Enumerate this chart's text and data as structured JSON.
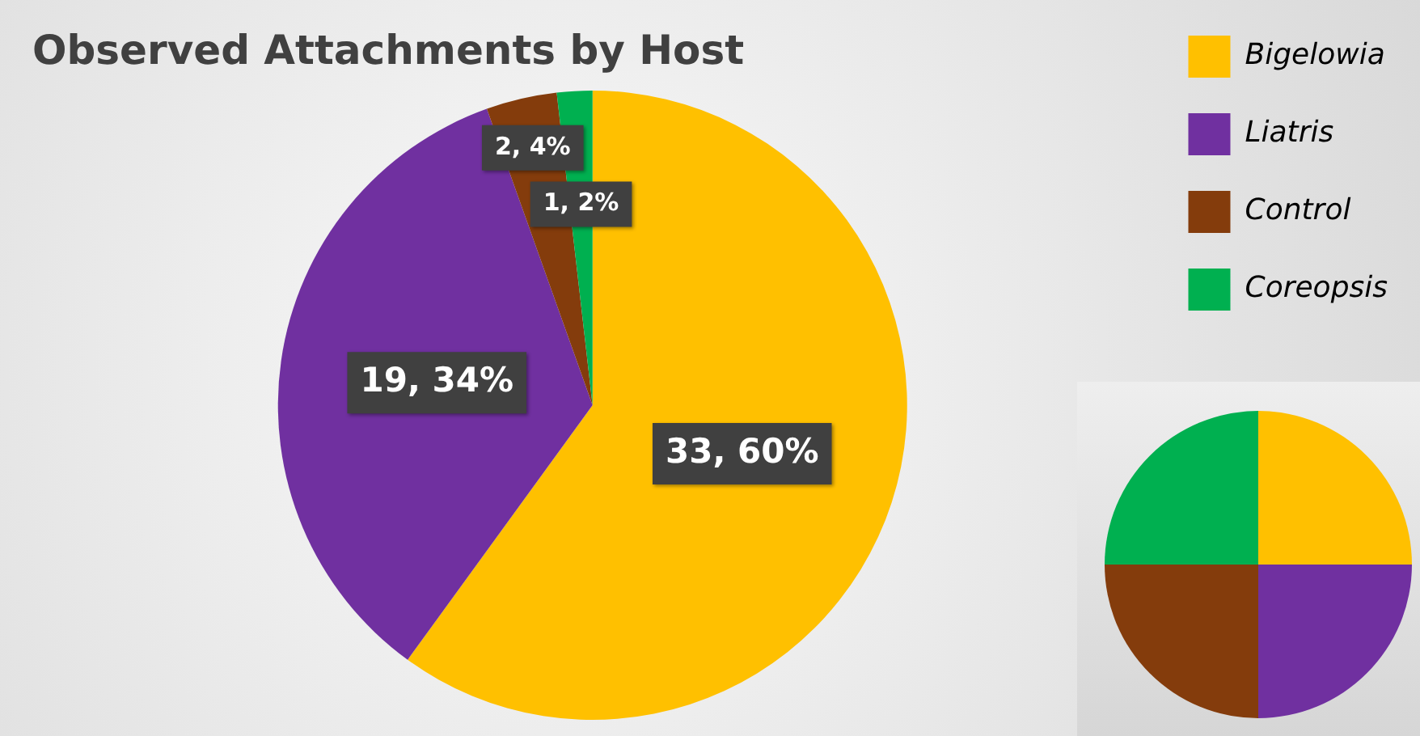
{
  "chart_data": {
    "type": "pie",
    "title": "Observed Attachments by Host",
    "categories": [
      "Bigelowia",
      "Liatris",
      "Control",
      "Coreopsis"
    ],
    "values": [
      33,
      19,
      2,
      1
    ],
    "value_labels": [
      "33, 60%",
      "19, 34%",
      "2, 4%",
      "1, 2%"
    ],
    "colors": [
      "#ffc000",
      "#7030a0",
      "#843c0c",
      "#00b050"
    ],
    "legend": "top right"
  }
}
